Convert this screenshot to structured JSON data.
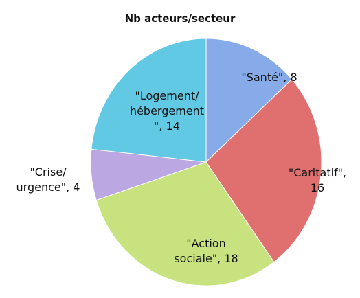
{
  "chart_data": {
    "type": "pie",
    "title": "Nb acteurs/secteur",
    "values": [
      8,
      16,
      18,
      4,
      14
    ],
    "value_labels": [
      "\"Santé\", 8",
      "\"Caritatif\",\n16",
      "\"Action\nsociale\", 18",
      "\"Crise/\nurgence\", 4",
      "\"Logement/\nhébergement\n\", 14"
    ],
    "colors": [
      "#86abe8",
      "#e07070",
      "#c7e27e",
      "#bba8e2",
      "#62c9e4"
    ]
  }
}
